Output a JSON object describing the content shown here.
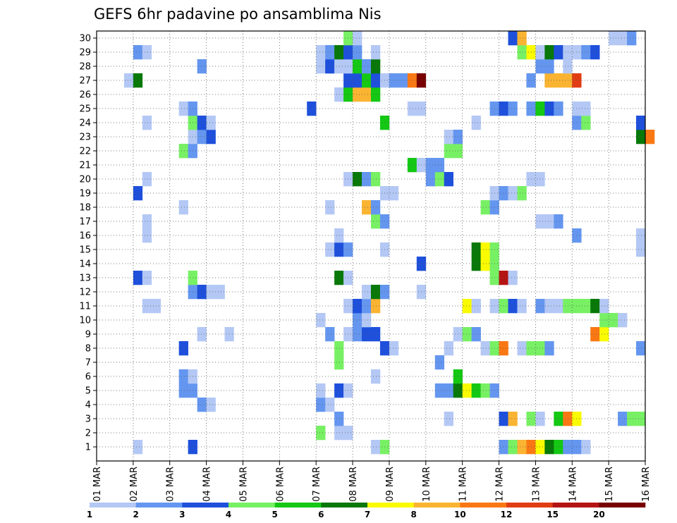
{
  "chart_data": {
    "type": "heatmap",
    "title": "GEFS 6hr padavine po ansamblima Nis",
    "xlabel": "",
    "ylabel": "",
    "x_ticks": [
      "01 MAR",
      "02 MAR",
      "03 MAR",
      "04 MAR",
      "05 MAR",
      "06 MAR",
      "07 MAR",
      "08 MAR",
      "09 MAR",
      "10 MAR",
      "11 MAR",
      "12 MAR",
      "13 MAR",
      "14 MAR",
      "15 MAR",
      "16 MAR"
    ],
    "x_range_days": [
      1,
      16
    ],
    "x_step_hours": 6,
    "ens_members": [
      1,
      2,
      3,
      4,
      5,
      6,
      7,
      8,
      9,
      10,
      11,
      12,
      13,
      14,
      15,
      16,
      17,
      18,
      19,
      20,
      21,
      22,
      23,
      24,
      25,
      26,
      27,
      28,
      29,
      30
    ],
    "grid": "dotted",
    "colorbar": {
      "labels": [
        "1",
        "2",
        "3",
        "4",
        "5",
        "6",
        "7",
        "8",
        "10",
        "12",
        "15",
        "20"
      ],
      "colors": [
        "#b4c8f5",
        "#6496f0",
        "#1e50dc",
        "#78f064",
        "#14c814",
        "#087808",
        "#fafa00",
        "#fab432",
        "#fa7814",
        "#e13c14",
        "#b41414",
        "#780000"
      ]
    },
    "cells": [
      [
        1,
        2.0,
        0
      ],
      [
        1,
        3.5,
        2
      ],
      [
        1,
        8.5,
        0
      ],
      [
        1,
        8.75,
        3
      ],
      [
        1,
        12.0,
        1
      ],
      [
        1,
        12.25,
        3
      ],
      [
        1,
        12.5,
        7
      ],
      [
        1,
        12.75,
        8
      ],
      [
        1,
        13.0,
        6
      ],
      [
        1,
        13.25,
        5
      ],
      [
        1,
        13.5,
        4
      ],
      [
        1,
        13.75,
        1
      ],
      [
        1,
        14.0,
        1
      ],
      [
        1,
        14.25,
        0
      ],
      [
        2,
        7.0,
        3
      ],
      [
        2,
        7.5,
        0
      ],
      [
        2,
        7.75,
        0
      ],
      [
        3,
        7.5,
        1
      ],
      [
        3,
        10.5,
        0
      ],
      [
        3,
        12.0,
        2
      ],
      [
        3,
        12.25,
        7
      ],
      [
        3,
        12.75,
        3
      ],
      [
        3,
        13.0,
        0
      ],
      [
        3,
        13.5,
        4
      ],
      [
        3,
        13.75,
        8
      ],
      [
        3,
        14.0,
        6
      ],
      [
        3,
        15.25,
        1
      ],
      [
        3,
        15.5,
        3
      ],
      [
        3,
        15.75,
        3
      ],
      [
        4,
        3.75,
        1
      ],
      [
        4,
        4.0,
        0
      ],
      [
        4,
        7.0,
        1
      ],
      [
        4,
        7.25,
        0
      ],
      [
        5,
        3.25,
        1
      ],
      [
        5,
        3.5,
        1
      ],
      [
        5,
        7.0,
        0
      ],
      [
        5,
        7.5,
        2
      ],
      [
        5,
        7.75,
        0
      ],
      [
        5,
        10.25,
        1
      ],
      [
        5,
        10.5,
        1
      ],
      [
        5,
        10.75,
        5
      ],
      [
        5,
        11.0,
        6
      ],
      [
        5,
        11.25,
        4
      ],
      [
        5,
        11.5,
        3
      ],
      [
        5,
        11.75,
        1
      ],
      [
        6,
        3.25,
        1
      ],
      [
        6,
        3.5,
        0
      ],
      [
        6,
        8.5,
        0
      ],
      [
        6,
        10.75,
        4
      ],
      [
        7,
        7.5,
        3
      ],
      [
        7,
        10.25,
        1
      ],
      [
        8,
        3.25,
        2
      ],
      [
        8,
        7.5,
        3
      ],
      [
        8,
        8.75,
        2
      ],
      [
        8,
        9.0,
        0
      ],
      [
        8,
        10.5,
        0
      ],
      [
        8,
        11.5,
        0
      ],
      [
        8,
        11.75,
        3
      ],
      [
        8,
        12.0,
        8
      ],
      [
        8,
        12.5,
        0
      ],
      [
        8,
        12.75,
        3
      ],
      [
        8,
        13.0,
        3
      ],
      [
        8,
        13.25,
        1
      ],
      [
        8,
        15.75,
        1
      ],
      [
        9,
        3.75,
        0
      ],
      [
        9,
        4.5,
        0
      ],
      [
        9,
        7.25,
        1
      ],
      [
        9,
        7.75,
        0
      ],
      [
        9,
        8.0,
        1
      ],
      [
        9,
        8.25,
        2
      ],
      [
        9,
        8.5,
        2
      ],
      [
        9,
        10.75,
        0
      ],
      [
        9,
        11.0,
        3
      ],
      [
        9,
        11.25,
        1
      ],
      [
        9,
        14.5,
        8
      ],
      [
        9,
        14.75,
        6
      ],
      [
        10,
        7.0,
        0
      ],
      [
        10,
        8.0,
        1
      ],
      [
        10,
        8.25,
        0
      ],
      [
        10,
        14.75,
        3
      ],
      [
        10,
        15.0,
        3
      ],
      [
        10,
        15.25,
        0
      ],
      [
        11,
        2.25,
        0
      ],
      [
        11,
        2.5,
        0
      ],
      [
        11,
        7.75,
        0
      ],
      [
        11,
        8.0,
        2
      ],
      [
        11,
        8.25,
        1
      ],
      [
        11,
        8.5,
        7
      ],
      [
        11,
        11.0,
        6
      ],
      [
        11,
        11.25,
        0
      ],
      [
        11,
        11.75,
        0
      ],
      [
        11,
        12.0,
        3
      ],
      [
        11,
        12.25,
        2
      ],
      [
        11,
        12.5,
        0
      ],
      [
        11,
        13.0,
        1
      ],
      [
        11,
        13.25,
        0
      ],
      [
        11,
        13.5,
        0
      ],
      [
        11,
        13.75,
        3
      ],
      [
        11,
        14.0,
        3
      ],
      [
        11,
        14.25,
        3
      ],
      [
        11,
        14.5,
        5
      ],
      [
        11,
        14.75,
        0
      ],
      [
        12,
        3.5,
        1
      ],
      [
        12,
        3.75,
        2
      ],
      [
        12,
        4.0,
        0
      ],
      [
        12,
        4.25,
        0
      ],
      [
        12,
        8.25,
        0
      ],
      [
        12,
        8.5,
        5
      ],
      [
        12,
        8.75,
        1
      ],
      [
        12,
        9.75,
        0
      ],
      [
        13,
        2.0,
        2
      ],
      [
        13,
        2.25,
        0
      ],
      [
        13,
        3.5,
        3
      ],
      [
        13,
        7.5,
        5
      ],
      [
        13,
        7.75,
        0
      ],
      [
        13,
        11.75,
        3
      ],
      [
        13,
        12.0,
        10
      ],
      [
        13,
        12.25,
        0
      ],
      [
        14,
        9.75,
        2
      ],
      [
        14,
        11.25,
        5
      ],
      [
        14,
        11.5,
        6
      ],
      [
        14,
        11.75,
        3
      ],
      [
        15,
        7.25,
        0
      ],
      [
        15,
        7.5,
        2
      ],
      [
        15,
        7.75,
        1
      ],
      [
        15,
        8.75,
        0
      ],
      [
        15,
        11.25,
        5
      ],
      [
        15,
        11.5,
        6
      ],
      [
        15,
        11.75,
        3
      ],
      [
        15,
        15.75,
        0
      ],
      [
        16,
        2.25,
        0
      ],
      [
        16,
        7.5,
        0
      ],
      [
        16,
        14.0,
        1
      ],
      [
        16,
        15.75,
        0
      ],
      [
        17,
        2.25,
        0
      ],
      [
        17,
        8.5,
        3
      ],
      [
        17,
        8.75,
        1
      ],
      [
        17,
        13.0,
        0
      ],
      [
        17,
        13.25,
        0
      ],
      [
        17,
        13.5,
        1
      ],
      [
        18,
        3.25,
        0
      ],
      [
        18,
        7.25,
        0
      ],
      [
        18,
        8.25,
        7
      ],
      [
        18,
        8.5,
        1
      ],
      [
        18,
        11.5,
        3
      ],
      [
        18,
        11.75,
        1
      ],
      [
        19,
        2.0,
        2
      ],
      [
        19,
        8.75,
        0
      ],
      [
        19,
        9.0,
        0
      ],
      [
        19,
        11.75,
        0
      ],
      [
        19,
        12.0,
        1
      ],
      [
        19,
        12.25,
        0
      ],
      [
        19,
        12.5,
        3
      ],
      [
        20,
        2.25,
        0
      ],
      [
        20,
        7.75,
        0
      ],
      [
        20,
        8.0,
        5
      ],
      [
        20,
        8.25,
        1
      ],
      [
        20,
        8.5,
        3
      ],
      [
        20,
        10.0,
        1
      ],
      [
        20,
        10.25,
        3
      ],
      [
        20,
        10.5,
        2
      ],
      [
        20,
        12.75,
        0
      ],
      [
        20,
        13.0,
        0
      ],
      [
        21,
        9.5,
        4
      ],
      [
        21,
        9.75,
        0
      ],
      [
        21,
        10.0,
        1
      ],
      [
        21,
        10.25,
        1
      ],
      [
        22,
        3.25,
        3
      ],
      [
        22,
        3.5,
        1
      ],
      [
        22,
        10.5,
        3
      ],
      [
        22,
        10.75,
        3
      ],
      [
        23,
        3.5,
        0
      ],
      [
        23,
        3.75,
        1
      ],
      [
        23,
        4.0,
        2
      ],
      [
        23,
        10.5,
        0
      ],
      [
        23,
        10.75,
        1
      ],
      [
        23,
        15.75,
        5
      ],
      [
        23,
        16.0,
        8
      ],
      [
        24,
        2.25,
        0
      ],
      [
        24,
        3.5,
        3
      ],
      [
        24,
        3.75,
        2
      ],
      [
        24,
        4.0,
        0
      ],
      [
        24,
        8.75,
        4
      ],
      [
        24,
        11.25,
        0
      ],
      [
        24,
        14.0,
        1
      ],
      [
        24,
        14.25,
        3
      ],
      [
        24,
        15.75,
        2
      ],
      [
        25,
        3.25,
        0
      ],
      [
        25,
        3.5,
        1
      ],
      [
        25,
        6.75,
        2
      ],
      [
        25,
        9.5,
        0
      ],
      [
        25,
        9.75,
        0
      ],
      [
        25,
        11.75,
        1
      ],
      [
        25,
        12.0,
        2
      ],
      [
        25,
        12.25,
        1
      ],
      [
        25,
        12.75,
        1
      ],
      [
        25,
        13.0,
        4
      ],
      [
        25,
        13.25,
        2
      ],
      [
        25,
        13.5,
        1
      ],
      [
        25,
        14.0,
        0
      ],
      [
        25,
        14.25,
        0
      ],
      [
        26,
        7.5,
        0
      ],
      [
        26,
        7.75,
        4
      ],
      [
        26,
        8.0,
        7
      ],
      [
        26,
        8.25,
        7
      ],
      [
        26,
        8.5,
        4
      ],
      [
        27,
        1.75,
        0
      ],
      [
        27,
        2.0,
        5
      ],
      [
        27,
        7.75,
        2
      ],
      [
        27,
        8.0,
        2
      ],
      [
        27,
        8.25,
        4
      ],
      [
        27,
        8.5,
        2
      ],
      [
        27,
        8.75,
        0
      ],
      [
        27,
        9.0,
        1
      ],
      [
        27,
        9.25,
        1
      ],
      [
        27,
        9.5,
        8
      ],
      [
        27,
        9.75,
        11
      ],
      [
        27,
        12.75,
        1
      ],
      [
        27,
        13.25,
        7
      ],
      [
        27,
        13.5,
        7
      ],
      [
        27,
        13.75,
        7
      ],
      [
        27,
        14.0,
        9
      ],
      [
        28,
        3.75,
        1
      ],
      [
        28,
        7.0,
        0
      ],
      [
        28,
        7.25,
        2
      ],
      [
        28,
        7.5,
        0
      ],
      [
        28,
        7.75,
        0
      ],
      [
        28,
        8.0,
        4
      ],
      [
        28,
        8.25,
        1
      ],
      [
        28,
        8.5,
        5
      ],
      [
        28,
        13.0,
        1
      ],
      [
        28,
        13.25,
        1
      ],
      [
        28,
        13.75,
        0
      ],
      [
        29,
        2.0,
        1
      ],
      [
        29,
        2.25,
        0
      ],
      [
        29,
        7.0,
        0
      ],
      [
        29,
        7.25,
        1
      ],
      [
        29,
        7.5,
        5
      ],
      [
        29,
        7.75,
        2
      ],
      [
        29,
        8.0,
        1
      ],
      [
        29,
        8.5,
        0
      ],
      [
        29,
        12.5,
        3
      ],
      [
        29,
        12.75,
        6
      ],
      [
        29,
        13.0,
        0
      ],
      [
        29,
        13.25,
        5
      ],
      [
        29,
        13.5,
        2
      ],
      [
        29,
        13.75,
        0
      ],
      [
        29,
        14.0,
        0
      ],
      [
        29,
        14.25,
        1
      ],
      [
        29,
        14.5,
        2
      ],
      [
        30,
        7.75,
        3
      ],
      [
        30,
        8.0,
        0
      ],
      [
        30,
        12.25,
        2
      ],
      [
        30,
        12.5,
        7
      ],
      [
        30,
        15.0,
        0
      ],
      [
        30,
        15.25,
        0
      ],
      [
        30,
        15.5,
        1
      ]
    ],
    "cells_format": "[member, x_day, color_index]"
  }
}
